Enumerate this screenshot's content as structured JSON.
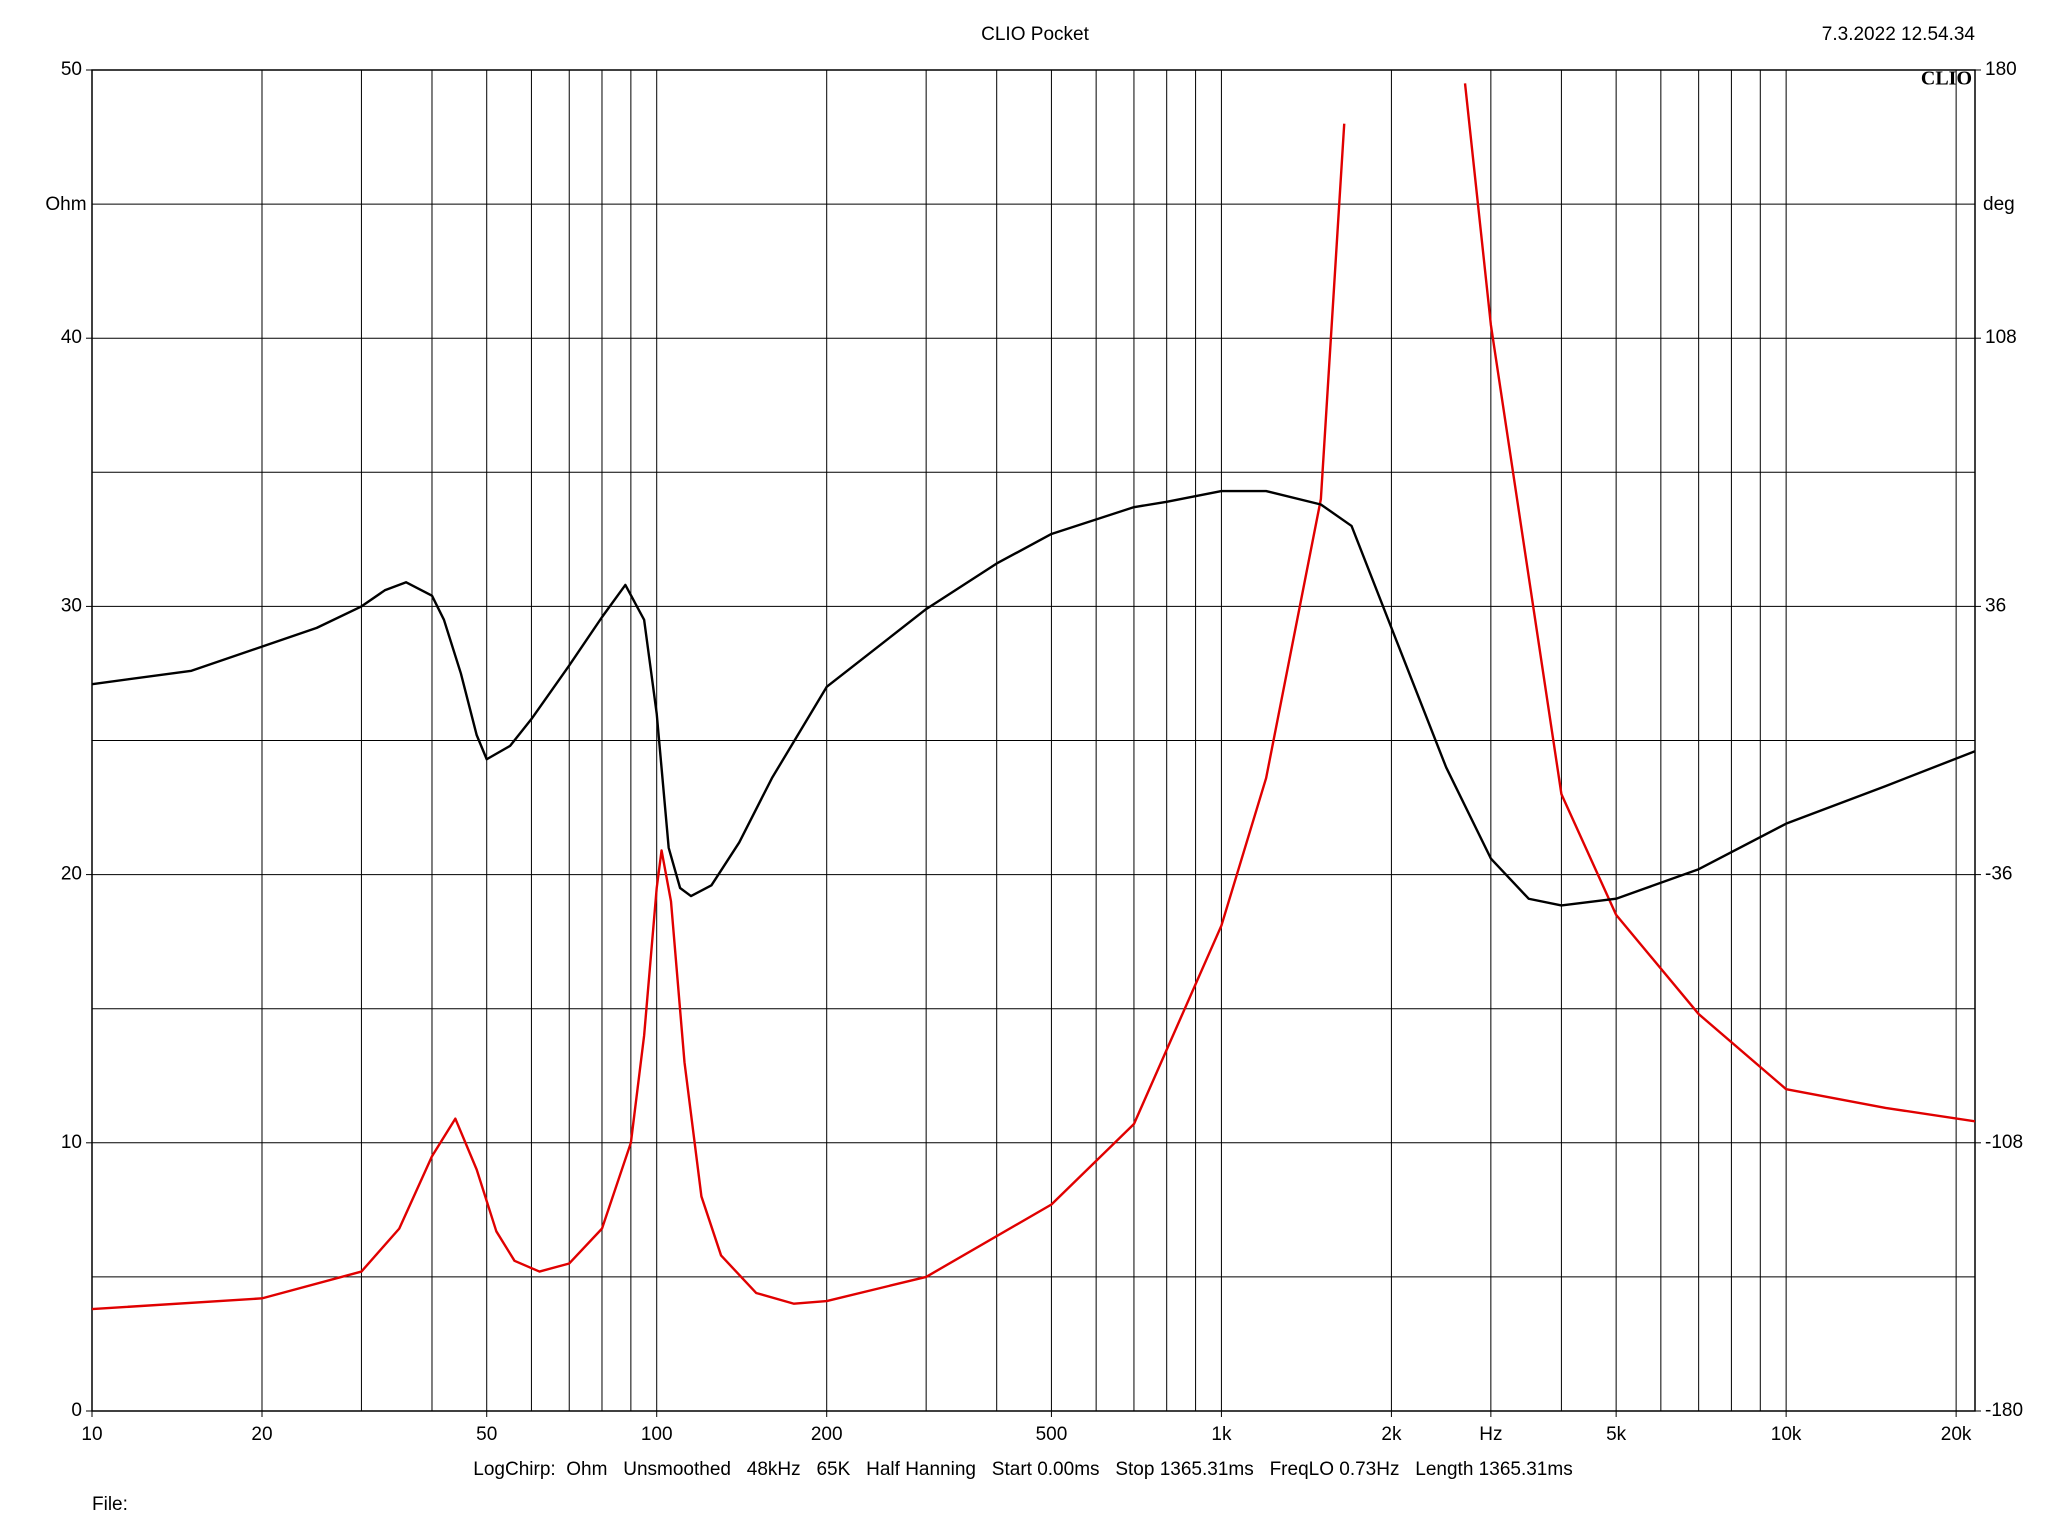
{
  "chart_data": {
    "type": "line",
    "title": "CLIO Pocket",
    "date": "7.3.2022 12.54.34",
    "logo": "CLIO",
    "y_unit_label": "Ohm",
    "y2_unit_label": "deg",
    "footer": "LogChirp:  Ohm   Unsmoothed   48kHz   65K   Half Hanning   Start 0.00ms   Stop 1365.31ms   FreqLO 0.73Hz   Length 1365.31ms",
    "file_label": "File:",
    "x_scale": "log",
    "xlim": [
      10,
      21600
    ],
    "ylim": [
      0,
      50
    ],
    "y2lim": [
      -180,
      180
    ],
    "xticks": [
      10,
      20,
      50,
      100,
      200,
      500,
      {
        "value": 1000,
        "label": "1k"
      },
      {
        "value": 2000,
        "label": "2k"
      },
      {
        "value": 3000,
        "label": "Hz"
      },
      {
        "value": 5000,
        "label": "5k"
      },
      {
        "value": 10000,
        "label": "10k"
      },
      {
        "value": 20000,
        "label": "20k"
      }
    ],
    "xgrid": [
      10,
      20,
      30,
      40,
      50,
      60,
      70,
      80,
      90,
      100,
      200,
      300,
      400,
      500,
      600,
      700,
      800,
      900,
      1000,
      2000,
      3000,
      4000,
      5000,
      6000,
      7000,
      8000,
      9000,
      10000,
      20000
    ],
    "yticks": [
      0,
      10,
      20,
      30,
      40,
      50
    ],
    "ygrid": [
      0,
      5,
      10,
      15,
      20,
      25,
      30,
      35,
      40,
      45,
      50
    ],
    "y2ticks": [
      -180,
      -108,
      -36,
      36,
      108,
      180
    ],
    "grid": true,
    "series": [
      {
        "color": "#000000",
        "x": [
          10,
          15,
          20,
          25,
          30,
          33,
          36,
          40,
          42,
          45,
          48,
          50,
          55,
          60,
          70,
          80,
          88,
          95,
          100,
          105,
          110,
          115,
          125,
          140,
          160,
          200,
          300,
          400,
          500,
          700,
          800,
          1000,
          1200,
          1500,
          1700,
          2000,
          2500,
          3000,
          3500,
          4000,
          5000,
          7000,
          10000,
          15000,
          21600
        ],
        "values": [
          27.1,
          27.6,
          28.5,
          29.2,
          30.0,
          30.6,
          30.9,
          30.4,
          29.5,
          27.5,
          25.2,
          24.3,
          24.8,
          25.8,
          27.8,
          29.6,
          30.8,
          29.5,
          26.0,
          21.0,
          19.5,
          19.2,
          19.6,
          21.2,
          23.6,
          27.0,
          29.9,
          31.6,
          32.7,
          33.7,
          33.9,
          34.3,
          34.3,
          33.8,
          33.0,
          29.2,
          24.0,
          20.6,
          19.1,
          18.85,
          19.1,
          20.2,
          21.9,
          23.3,
          24.6
        ]
      },
      {
        "color": "#e00000",
        "x": [
          10,
          20,
          30,
          35,
          40,
          44,
          48,
          52,
          56,
          62,
          70,
          80,
          90,
          95,
          100,
          102,
          106,
          112,
          120,
          130,
          150,
          175,
          200,
          300,
          500,
          700,
          1000,
          1200,
          1500,
          1650,
          2100,
          2700,
          3000,
          4000,
          5000,
          7000,
          10000,
          15000,
          21600
        ],
        "values": [
          3.8,
          4.2,
          5.2,
          6.8,
          9.5,
          10.9,
          9.0,
          6.7,
          5.6,
          5.2,
          5.5,
          6.8,
          10.0,
          14.0,
          19.5,
          20.9,
          19.0,
          13.0,
          8.0,
          5.8,
          4.4,
          4.0,
          4.1,
          5.0,
          7.7,
          10.7,
          18.1,
          23.6,
          34.0,
          48.0,
          null,
          49.5,
          40.5,
          23.0,
          18.5,
          14.8,
          12.0,
          11.3,
          10.8
        ]
      }
    ]
  }
}
